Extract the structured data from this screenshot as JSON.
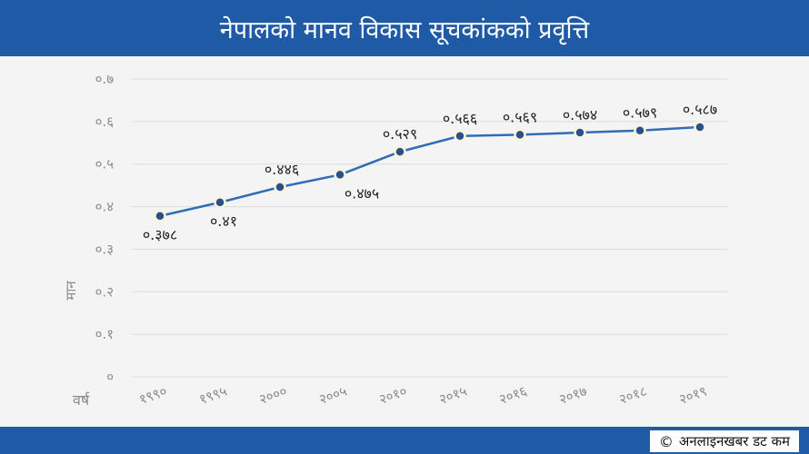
{
  "header": {
    "title": "नेपालको मानव विकास सूचकांकको प्रवृत्ति"
  },
  "footer": {
    "copyright_symbol": "©",
    "credit": "अनलाइनखबर डट कम"
  },
  "colors": {
    "header_bg": "#1f5aa6",
    "line": "#2f6db5",
    "marker": "#2b4f8c",
    "marker_halo": "#fbf4d8"
  },
  "chart_data": {
    "type": "line",
    "title": "नेपालको मानव विकास सूचकांकको प्रवृत्ति",
    "xlabel": "वर्ष",
    "ylabel": "मान",
    "categories": [
      "१९९०",
      "१९९५",
      "२०००",
      "२००५",
      "२०१०",
      "२०१५",
      "२०१६",
      "२०१७",
      "२०१८",
      "२०१९"
    ],
    "values": [
      0.378,
      0.41,
      0.446,
      0.475,
      0.529,
      0.566,
      0.569,
      0.574,
      0.579,
      0.587
    ],
    "data_labels": [
      "०.३७८",
      "०.४१",
      "०.४४६",
      "०.४७५",
      "०.५२९",
      "०.५६६",
      "०.५६९",
      "०.५७४",
      "०.५७९",
      "०.५८७"
    ],
    "yticks": [
      0,
      0.1,
      0.2,
      0.3,
      0.4,
      0.5,
      0.6,
      0.7
    ],
    "ytick_labels": [
      "०",
      "०.१",
      "०.२",
      "०.३",
      "०.४",
      "०.५",
      "०.६",
      "०.७"
    ],
    "ylim": [
      0,
      0.7
    ],
    "grid": true,
    "legend": false
  }
}
